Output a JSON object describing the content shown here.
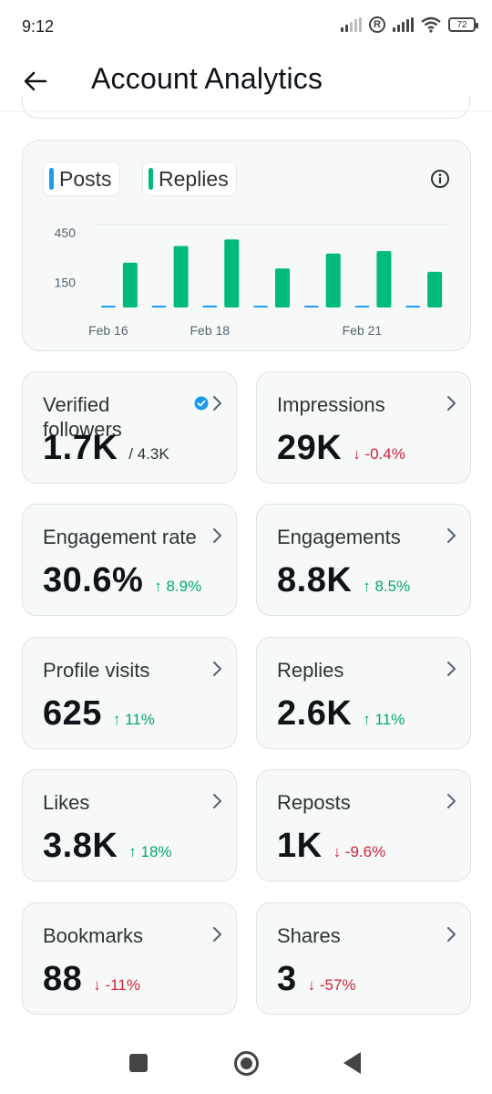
{
  "status_bar": {
    "time": "9:12",
    "registered_symbol": "R",
    "battery": "72"
  },
  "header": {
    "title": "Account Analytics",
    "back_icon": "arrow-left-icon"
  },
  "chart_legend": {
    "posts_label": "Posts",
    "replies_label": "Replies",
    "posts_color": "#1d9bf0",
    "replies_color": "#00ba7c"
  },
  "chart_data": {
    "type": "bar",
    "categories": [
      "Feb 16",
      "Feb 17",
      "Feb 18",
      "Feb 19",
      "Feb 20",
      "Feb 21",
      "Feb 22"
    ],
    "series": [
      {
        "name": "Posts",
        "values": [
          3,
          4,
          12,
          4,
          6,
          5,
          4
        ]
      },
      {
        "name": "Replies",
        "values": [
          270,
          370,
          410,
          235,
          325,
          340,
          215
        ]
      }
    ],
    "x_tick_labels": [
      "Feb 16",
      "Feb 18",
      "Feb 21"
    ],
    "y_tick_labels": [
      "450",
      "150"
    ],
    "y_ticks": [
      450,
      150
    ],
    "ylim": [
      0,
      500
    ],
    "grid": true
  },
  "metrics": [
    {
      "label": "Verified followers",
      "value": "1.7K",
      "total": "/ 4.3K",
      "verified_icon": "verified-badge-icon"
    },
    {
      "label": "Impressions",
      "value": "29K",
      "change": "↓ -0.4%",
      "direction": "down"
    },
    {
      "label": "Engagement rate",
      "value": "30.6%",
      "change": "↑ 8.9%",
      "direction": "up"
    },
    {
      "label": "Engagements",
      "value": "8.8K",
      "change": "↑ 8.5%",
      "direction": "up"
    },
    {
      "label": "Profile visits",
      "value": "625",
      "change": "↑ 11%",
      "direction": "up"
    },
    {
      "label": "Replies",
      "value": "2.6K",
      "change": "↑ 11%",
      "direction": "up"
    },
    {
      "label": "Likes",
      "value": "3.8K",
      "change": "↑ 18%",
      "direction": "up"
    },
    {
      "label": "Reposts",
      "value": "1K",
      "change": "↓ -9.6%",
      "direction": "down"
    },
    {
      "label": "Bookmarks",
      "value": "88",
      "change": "↓ -11%",
      "direction": "down"
    },
    {
      "label": "Shares",
      "value": "3",
      "change": "↓ -57%",
      "direction": "down"
    }
  ],
  "nav": {
    "recents_icon": "square-icon",
    "home_icon": "circle-home-icon",
    "back_icon": "triangle-back-icon"
  }
}
